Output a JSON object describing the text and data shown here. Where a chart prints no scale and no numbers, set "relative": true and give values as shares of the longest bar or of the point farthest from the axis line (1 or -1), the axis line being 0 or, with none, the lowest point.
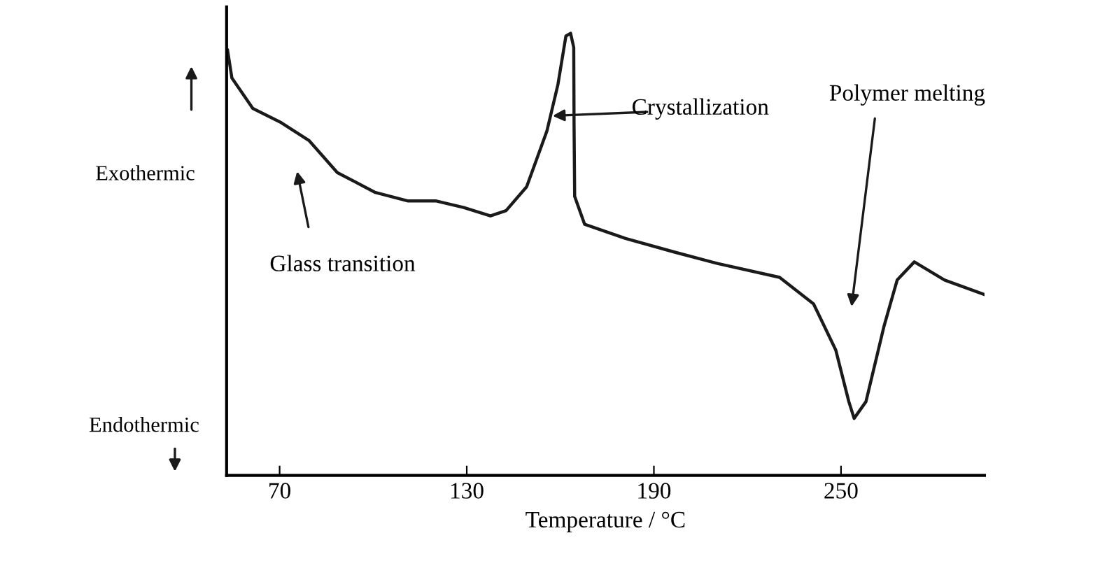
{
  "chart_data": {
    "type": "line",
    "relative": true,
    "xlabel": "Temperature / °C",
    "xlim": [
      53,
      296
    ],
    "xticks": [
      70,
      130,
      190,
      250
    ],
    "tick_labels": "x",
    "grid": false,
    "legend": false,
    "marker": "none",
    "line_style": "solid",
    "series": [
      {
        "color": "#1a1a1a",
        "x": [
          53.3,
          54.7,
          61.4,
          70.5,
          79.5,
          88.5,
          100.7,
          111,
          120,
          129,
          137.6,
          142.6,
          149.2,
          155.7,
          159.2,
          161.8,
          163.3,
          164.3,
          164.4,
          164.6,
          167.8,
          180.9,
          196.7,
          210.6,
          230.3,
          241.2,
          248.3,
          252.5,
          254.2,
          258,
          263.8,
          268,
          273.5,
          283.2,
          295.7
        ],
        "values": [
          0.962,
          0.899,
          0.83,
          0.798,
          0.757,
          0.685,
          0.64,
          0.621,
          0.621,
          0.606,
          0.587,
          0.599,
          0.653,
          0.779,
          0.883,
          0.994,
          1,
          0.968,
          0.798,
          0.631,
          0.568,
          0.536,
          0.505,
          0.479,
          0.448,
          0.388,
          0.284,
          0.167,
          0.129,
          0.167,
          0.338,
          0.442,
          0.483,
          0.442,
          0.41
        ]
      }
    ],
    "annotations": [
      "Glass transition",
      "Crystallization",
      "Polymer melting",
      "Exothermic",
      "Endothermic"
    ]
  }
}
